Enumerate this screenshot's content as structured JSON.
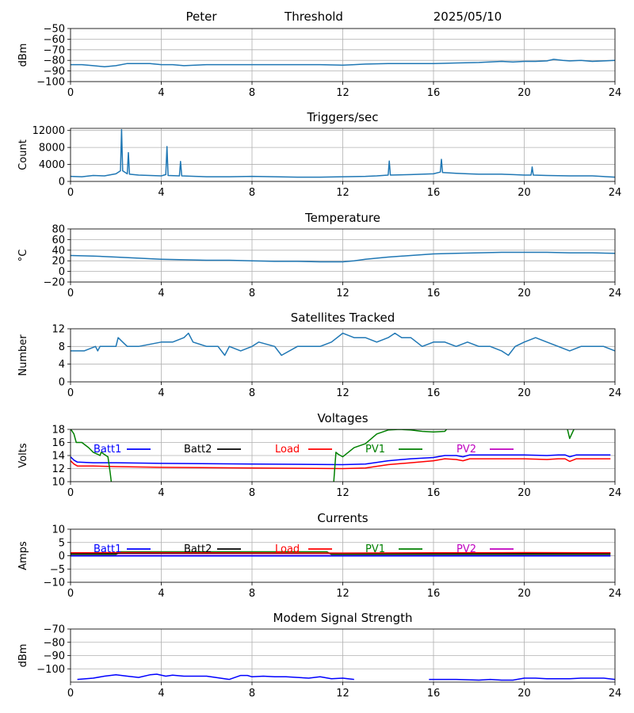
{
  "header": {
    "left": "Peter",
    "center": "Threshold",
    "right": "2025/05/10"
  },
  "colors": {
    "default": "#1f77b4",
    "batt1": "#0000ff",
    "batt2": "#000000",
    "load": "#ff0000",
    "pv1": "#008000",
    "pv2": "#bf00bf",
    "grid": "#b0b0b0",
    "axis": "#000000"
  },
  "chart_data": [
    {
      "id": "threshold",
      "type": "line",
      "title": "",
      "xlabel": "",
      "ylabel": "dBm",
      "xlim": [
        0,
        24
      ],
      "ylim": [
        -100,
        -50
      ],
      "xticks": [
        0,
        4,
        8,
        12,
        16,
        20,
        24
      ],
      "yticks": [
        -100,
        -90,
        -80,
        -70,
        -60,
        -50
      ],
      "grid": true,
      "series": [
        {
          "color_key": "default",
          "x": [
            0,
            0.5,
            1,
            1.5,
            2,
            2.5,
            3,
            3.5,
            4,
            4.5,
            5,
            6,
            7,
            8,
            9,
            10,
            11,
            12,
            12.5,
            13,
            14,
            15,
            16,
            17,
            18,
            19,
            19.5,
            20,
            20.5,
            21,
            21.3,
            21.7,
            22,
            22.5,
            23,
            23.5,
            24
          ],
          "y": [
            -84,
            -84,
            -85,
            -86,
            -85,
            -83,
            -83,
            -83,
            -84,
            -84,
            -85,
            -84,
            -84,
            -84,
            -84,
            -84,
            -84,
            -84.5,
            -84,
            -83.5,
            -83,
            -83,
            -83,
            -82.5,
            -82,
            -81,
            -81.5,
            -81,
            -81,
            -80.5,
            -79,
            -80,
            -80.5,
            -80,
            -81,
            -80.5,
            -80
          ]
        }
      ]
    },
    {
      "id": "triggers",
      "type": "line",
      "title": "Triggers/sec",
      "xlabel": "",
      "ylabel": "Count",
      "xlim": [
        0,
        24
      ],
      "ylim": [
        0,
        12500
      ],
      "xticks": [
        0,
        4,
        8,
        12,
        16,
        20,
        24
      ],
      "yticks": [
        0,
        4000,
        8000,
        12000
      ],
      "grid": true,
      "series": [
        {
          "color_key": "default",
          "x": [
            0,
            0.5,
            1,
            1.5,
            2,
            2.2,
            2.25,
            2.3,
            2.5,
            2.55,
            2.6,
            3,
            3.5,
            4,
            4.2,
            4.25,
            4.3,
            4.8,
            4.85,
            4.9,
            5.5,
            6,
            7,
            8,
            9,
            10,
            11,
            12,
            13,
            13.5,
            14,
            14.05,
            14.1,
            15,
            16,
            16.3,
            16.35,
            16.4,
            17,
            17.5,
            18,
            19,
            19.5,
            20,
            20.3,
            20.35,
            20.4,
            21,
            22,
            23,
            24
          ],
          "y": [
            1200,
            1100,
            1400,
            1300,
            1800,
            2500,
            12200,
            2500,
            1800,
            6800,
            1700,
            1500,
            1400,
            1300,
            1600,
            8200,
            1400,
            1300,
            4700,
            1300,
            1200,
            1100,
            1100,
            1200,
            1100,
            1000,
            1000,
            1100,
            1200,
            1300,
            1500,
            4800,
            1500,
            1600,
            1800,
            2200,
            5200,
            2100,
            1900,
            1800,
            1700,
            1700,
            1600,
            1500,
            1500,
            3400,
            1500,
            1400,
            1300,
            1300,
            1000
          ]
        }
      ]
    },
    {
      "id": "temperature",
      "type": "line",
      "title": "Temperature",
      "xlabel": "",
      "ylabel": "°C",
      "xlim": [
        0,
        24
      ],
      "ylim": [
        -20,
        80
      ],
      "xticks": [
        0,
        4,
        8,
        12,
        16,
        20,
        24
      ],
      "yticks": [
        -20,
        0,
        20,
        40,
        60,
        80
      ],
      "grid": true,
      "series": [
        {
          "color_key": "default",
          "x": [
            0,
            1,
            2,
            3,
            4,
            5,
            6,
            7,
            8,
            9,
            10,
            11,
            12,
            12.5,
            13,
            14,
            15,
            16,
            17,
            18,
            19,
            20,
            21,
            22,
            23,
            24
          ],
          "y": [
            30,
            29,
            27,
            25,
            23,
            22,
            21,
            21,
            20,
            19,
            19,
            18,
            18,
            20,
            23,
            27,
            30,
            33,
            34,
            35,
            36,
            36,
            36,
            35,
            35,
            34
          ]
        }
      ]
    },
    {
      "id": "satellites",
      "type": "line",
      "title": "Satellites Tracked",
      "xlabel": "",
      "ylabel": "Number",
      "xlim": [
        0,
        24
      ],
      "ylim": [
        0,
        12
      ],
      "xticks": [
        0,
        4,
        8,
        12,
        16,
        20,
        24
      ],
      "yticks": [
        0,
        4,
        8,
        12
      ],
      "grid": true,
      "series": [
        {
          "color_key": "default",
          "x": [
            0,
            0.6,
            1.1,
            1.2,
            1.3,
            2,
            2.1,
            2.3,
            2.5,
            3,
            4,
            4.5,
            5,
            5.2,
            5.4,
            6,
            6.5,
            6.8,
            7,
            7.5,
            8,
            8.3,
            9,
            9.3,
            10,
            10.5,
            11,
            11.5,
            12,
            12.5,
            13,
            13.5,
            14,
            14.3,
            14.6,
            15,
            15.5,
            16,
            16.5,
            17,
            17.5,
            18,
            18.5,
            19,
            19.3,
            19.6,
            20,
            20.5,
            21,
            21.5,
            22,
            22.5,
            23,
            23.5,
            24
          ],
          "y": [
            7,
            7,
            8,
            7,
            8,
            8,
            10,
            9,
            8,
            8,
            9,
            9,
            10,
            11,
            9,
            8,
            8,
            6,
            8,
            7,
            8,
            9,
            8,
            6,
            8,
            8,
            8,
            9,
            11,
            10,
            10,
            9,
            10,
            11,
            10,
            10,
            8,
            9,
            9,
            8,
            9,
            8,
            8,
            7,
            6,
            8,
            9,
            10,
            9,
            8,
            7,
            8,
            8,
            8,
            7
          ]
        }
      ]
    },
    {
      "id": "voltages",
      "type": "line",
      "title": "Voltages",
      "xlabel": "",
      "ylabel": "Volts",
      "xlim": [
        0,
        24
      ],
      "ylim": [
        10,
        18
      ],
      "xticks": [
        0,
        4,
        8,
        12,
        16,
        20,
        24
      ],
      "yticks": [
        10,
        12,
        14,
        16,
        18
      ],
      "grid": true,
      "legend": [
        "Batt1",
        "Batt2",
        "Load",
        "PV1",
        "PV2"
      ],
      "series": [
        {
          "name": "Batt1",
          "color_key": "batt1",
          "x": [
            0,
            0.15,
            0.3,
            1,
            2,
            4,
            8,
            12,
            13,
            14,
            15,
            16,
            16.5,
            17,
            17.3,
            17.6,
            20,
            21,
            21.5,
            21.8,
            22,
            22.3,
            23,
            23.8
          ],
          "y": [
            13.8,
            13.3,
            13.0,
            12.9,
            12.9,
            12.8,
            12.7,
            12.6,
            12.7,
            13.2,
            13.5,
            13.7,
            14.0,
            14.0,
            13.8,
            14.1,
            14.1,
            14.0,
            14.1,
            14.1,
            13.8,
            14.1,
            14.1,
            14.1
          ]
        },
        {
          "name": "Load",
          "color_key": "load",
          "x": [
            0,
            0.15,
            0.3,
            1,
            2,
            4,
            8,
            12,
            13,
            14,
            15,
            16,
            16.5,
            17,
            17.3,
            17.6,
            20,
            21,
            21.5,
            21.8,
            22,
            22.3,
            23,
            23.8
          ],
          "y": [
            13.2,
            12.7,
            12.4,
            12.4,
            12.3,
            12.2,
            12.1,
            12.0,
            12.1,
            12.6,
            12.9,
            13.2,
            13.5,
            13.4,
            13.2,
            13.5,
            13.5,
            13.4,
            13.5,
            13.5,
            13.1,
            13.5,
            13.5,
            13.5
          ]
        },
        {
          "name": "PV1",
          "color_key": "pv1",
          "x": [
            0,
            0.15,
            0.25,
            0.5,
            0.8,
            1,
            1.2,
            1.3,
            1.35,
            1.65,
            1.75,
            1.8
          ],
          "y": [
            18.1,
            17.3,
            16.0,
            16.0,
            15.2,
            14.5,
            14.2,
            14.0,
            14.5,
            13.8,
            11.3,
            9.9
          ]
        },
        {
          "name": "PV1",
          "color_key": "pv1",
          "x": [
            11.6,
            11.7,
            11.8,
            12,
            12.5,
            13,
            13.5,
            14,
            14.5,
            15,
            15.5,
            16,
            16.5,
            16.6
          ],
          "y": [
            9.9,
            14.5,
            14.2,
            13.8,
            15.2,
            15.8,
            17.3,
            17.9,
            18.0,
            17.9,
            17.7,
            17.6,
            17.7,
            18.1
          ]
        },
        {
          "name": "PV1",
          "color_key": "pv1",
          "x": [
            21.9,
            22.0,
            22.2
          ],
          "y": [
            18.1,
            16.6,
            18.1
          ]
        }
      ]
    },
    {
      "id": "currents",
      "type": "line",
      "title": "Currents",
      "xlabel": "",
      "ylabel": "Amps",
      "xlim": [
        0,
        24
      ],
      "ylim": [
        -10,
        10
      ],
      "xticks": [
        0,
        4,
        8,
        12,
        16,
        20,
        24
      ],
      "yticks": [
        -10,
        -5,
        0,
        5,
        10
      ],
      "grid": true,
      "legend": [
        "Batt1",
        "Batt2",
        "Load",
        "PV1",
        "PV2"
      ],
      "series": [
        {
          "name": "PV1",
          "color_key": "pv1",
          "x": [
            0,
            2,
            2.2,
            11.3,
            11.5,
            23.8
          ],
          "y": [
            0.5,
            0.5,
            1.5,
            1.5,
            0.5,
            0.5
          ]
        },
        {
          "name": "Batt2",
          "color_key": "batt2",
          "x": [
            0,
            23.8
          ],
          "y": [
            0.9,
            0.9
          ]
        },
        {
          "name": "Load",
          "color_key": "load",
          "x": [
            0,
            2,
            6,
            12,
            16,
            20,
            23.8
          ],
          "y": [
            1.1,
            1.2,
            1.1,
            1.0,
            1.1,
            1.2,
            1.1
          ]
        },
        {
          "name": "PV2",
          "color_key": "pv2",
          "x": [
            0,
            23.8
          ],
          "y": [
            0.1,
            0.1
          ]
        },
        {
          "name": "Batt1",
          "color_key": "batt1",
          "x": [
            0,
            23.8
          ],
          "y": [
            -0.1,
            -0.1
          ]
        }
      ]
    },
    {
      "id": "modem",
      "type": "line",
      "title": "Modem Signal Strength",
      "xlabel": "",
      "ylabel": "dBm",
      "xlim": [
        0,
        24
      ],
      "ylim": [
        -110,
        -70
      ],
      "xticks": [
        0,
        4,
        8,
        12,
        16,
        20,
        24
      ],
      "yticks": [
        -100,
        -90,
        -80,
        -70
      ],
      "grid": true,
      "series": [
        {
          "color_key": "batt1",
          "x": [
            0.3,
            1,
            1.5,
            2,
            2.5,
            3,
            3.5,
            3.8,
            4.2,
            4.5,
            5,
            5.5,
            6,
            7,
            7.5,
            7.8,
            8,
            8.5,
            9,
            9.5,
            10,
            10.5,
            11,
            11.5,
            12,
            12.5
          ],
          "y": [
            -108,
            -107,
            -105.5,
            -104.5,
            -105.5,
            -106.5,
            -104.5,
            -104,
            -105.5,
            -104.8,
            -105.5,
            -105.5,
            -105.5,
            -108,
            -105,
            -105,
            -106,
            -105.5,
            -106,
            -106,
            -106.5,
            -107,
            -106,
            -107.5,
            -107,
            -108
          ]
        },
        {
          "color_key": "batt1",
          "x": [
            15.8,
            17,
            18,
            18.5,
            19,
            19.5,
            20,
            20.5,
            21,
            22,
            22.5,
            23,
            23.5,
            24
          ],
          "y": [
            -108,
            -108,
            -108.5,
            -108,
            -108.5,
            -108.5,
            -107,
            -107,
            -107.5,
            -107.5,
            -107,
            -107,
            -107,
            -108
          ]
        }
      ]
    }
  ]
}
